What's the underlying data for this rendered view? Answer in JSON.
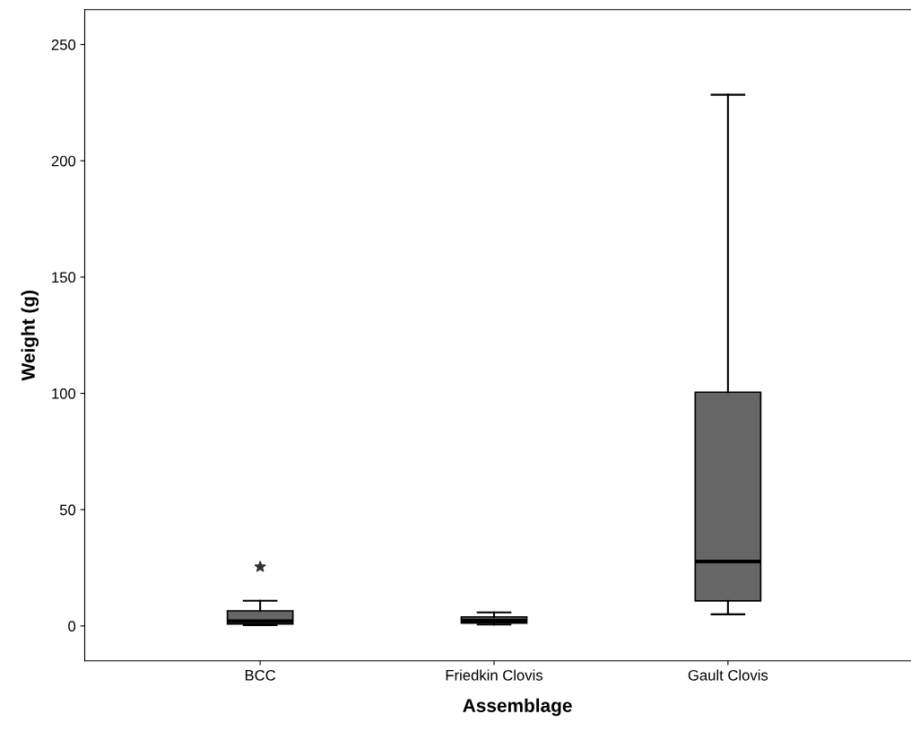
{
  "chart_data": {
    "type": "box",
    "xlabel": "Assemblage",
    "ylabel": "Weight (g)",
    "categories": [
      "BCC",
      "Friedkin Clovis",
      "Gault Clovis"
    ],
    "boxes": [
      {
        "low": 0.3,
        "q1": 0.8,
        "median": 2,
        "q3": 6.5,
        "high": 10.8,
        "outliers": [
          25.4
        ]
      },
      {
        "low": 0.6,
        "q1": 1.2,
        "median": 2.3,
        "q3": 3.9,
        "high": 5.8
      },
      {
        "low": 5,
        "q1": 10.8,
        "median": 27.7,
        "q3": 100.5,
        "high": 228.4
      }
    ],
    "color": "#666666",
    "marker": "star",
    "ylim": [
      -15,
      265
    ],
    "yticks": [
      0,
      50,
      100,
      150,
      200,
      250
    ],
    "grid": false
  }
}
